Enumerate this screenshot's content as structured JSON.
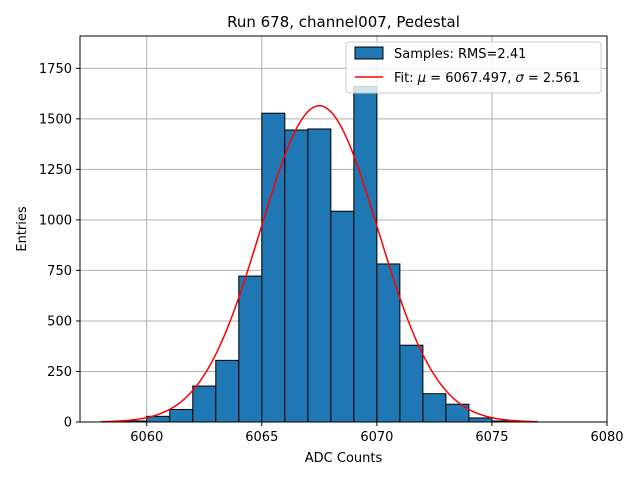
{
  "chart_data": {
    "type": "bar",
    "title": "Run 678, channel007, Pedestal",
    "xlabel": "ADC Counts",
    "ylabel": "Entries",
    "xlim": [
      6057.1,
      6080
    ],
    "ylim": [
      0,
      1910
    ],
    "xticks": [
      6060,
      6065,
      6070,
      6075,
      6080
    ],
    "yticks": [
      0,
      250,
      500,
      750,
      1000,
      1250,
      1500,
      1750
    ],
    "grid": true,
    "legend_position": "top-right",
    "bin_width": 1,
    "bins": [
      {
        "x": 6059,
        "value": 5
      },
      {
        "x": 6060,
        "value": 28
      },
      {
        "x": 6061,
        "value": 62
      },
      {
        "x": 6062,
        "value": 178
      },
      {
        "x": 6063,
        "value": 305
      },
      {
        "x": 6064,
        "value": 722
      },
      {
        "x": 6065,
        "value": 1528
      },
      {
        "x": 6066,
        "value": 1445
      },
      {
        "x": 6067,
        "value": 1450
      },
      {
        "x": 6068,
        "value": 1043
      },
      {
        "x": 6069,
        "value": 1660
      },
      {
        "x": 6070,
        "value": 782
      },
      {
        "x": 6071,
        "value": 380
      },
      {
        "x": 6072,
        "value": 140
      },
      {
        "x": 6073,
        "value": 88
      },
      {
        "x": 6074,
        "value": 20
      },
      {
        "x": 6075,
        "value": 5
      }
    ],
    "fit": {
      "mu": 6067.497,
      "sigma": 2.561,
      "amplitude": 1565,
      "x_range": [
        6058,
        6077
      ]
    },
    "series": [
      {
        "name": "Samples: RMS=2.41",
        "kind": "histogram",
        "color": "#1f77b4"
      },
      {
        "name": "Fit: μ = 6067.497, σ = 2.561",
        "kind": "line",
        "color": "#ff0000"
      }
    ]
  },
  "legend": {
    "histogram_label": "Samples: RMS=2.41",
    "fit_prefix": "Fit: ",
    "fit_mu_symbol": "μ",
    "fit_mu_value": " = 6067.497, ",
    "fit_sigma_symbol": "σ",
    "fit_sigma_value": " = 2.561"
  },
  "colors": {
    "bar_fill": "#1f77b4",
    "bar_edge": "#000000",
    "fit_line": "#ff0000",
    "grid": "#b0b0b0"
  }
}
